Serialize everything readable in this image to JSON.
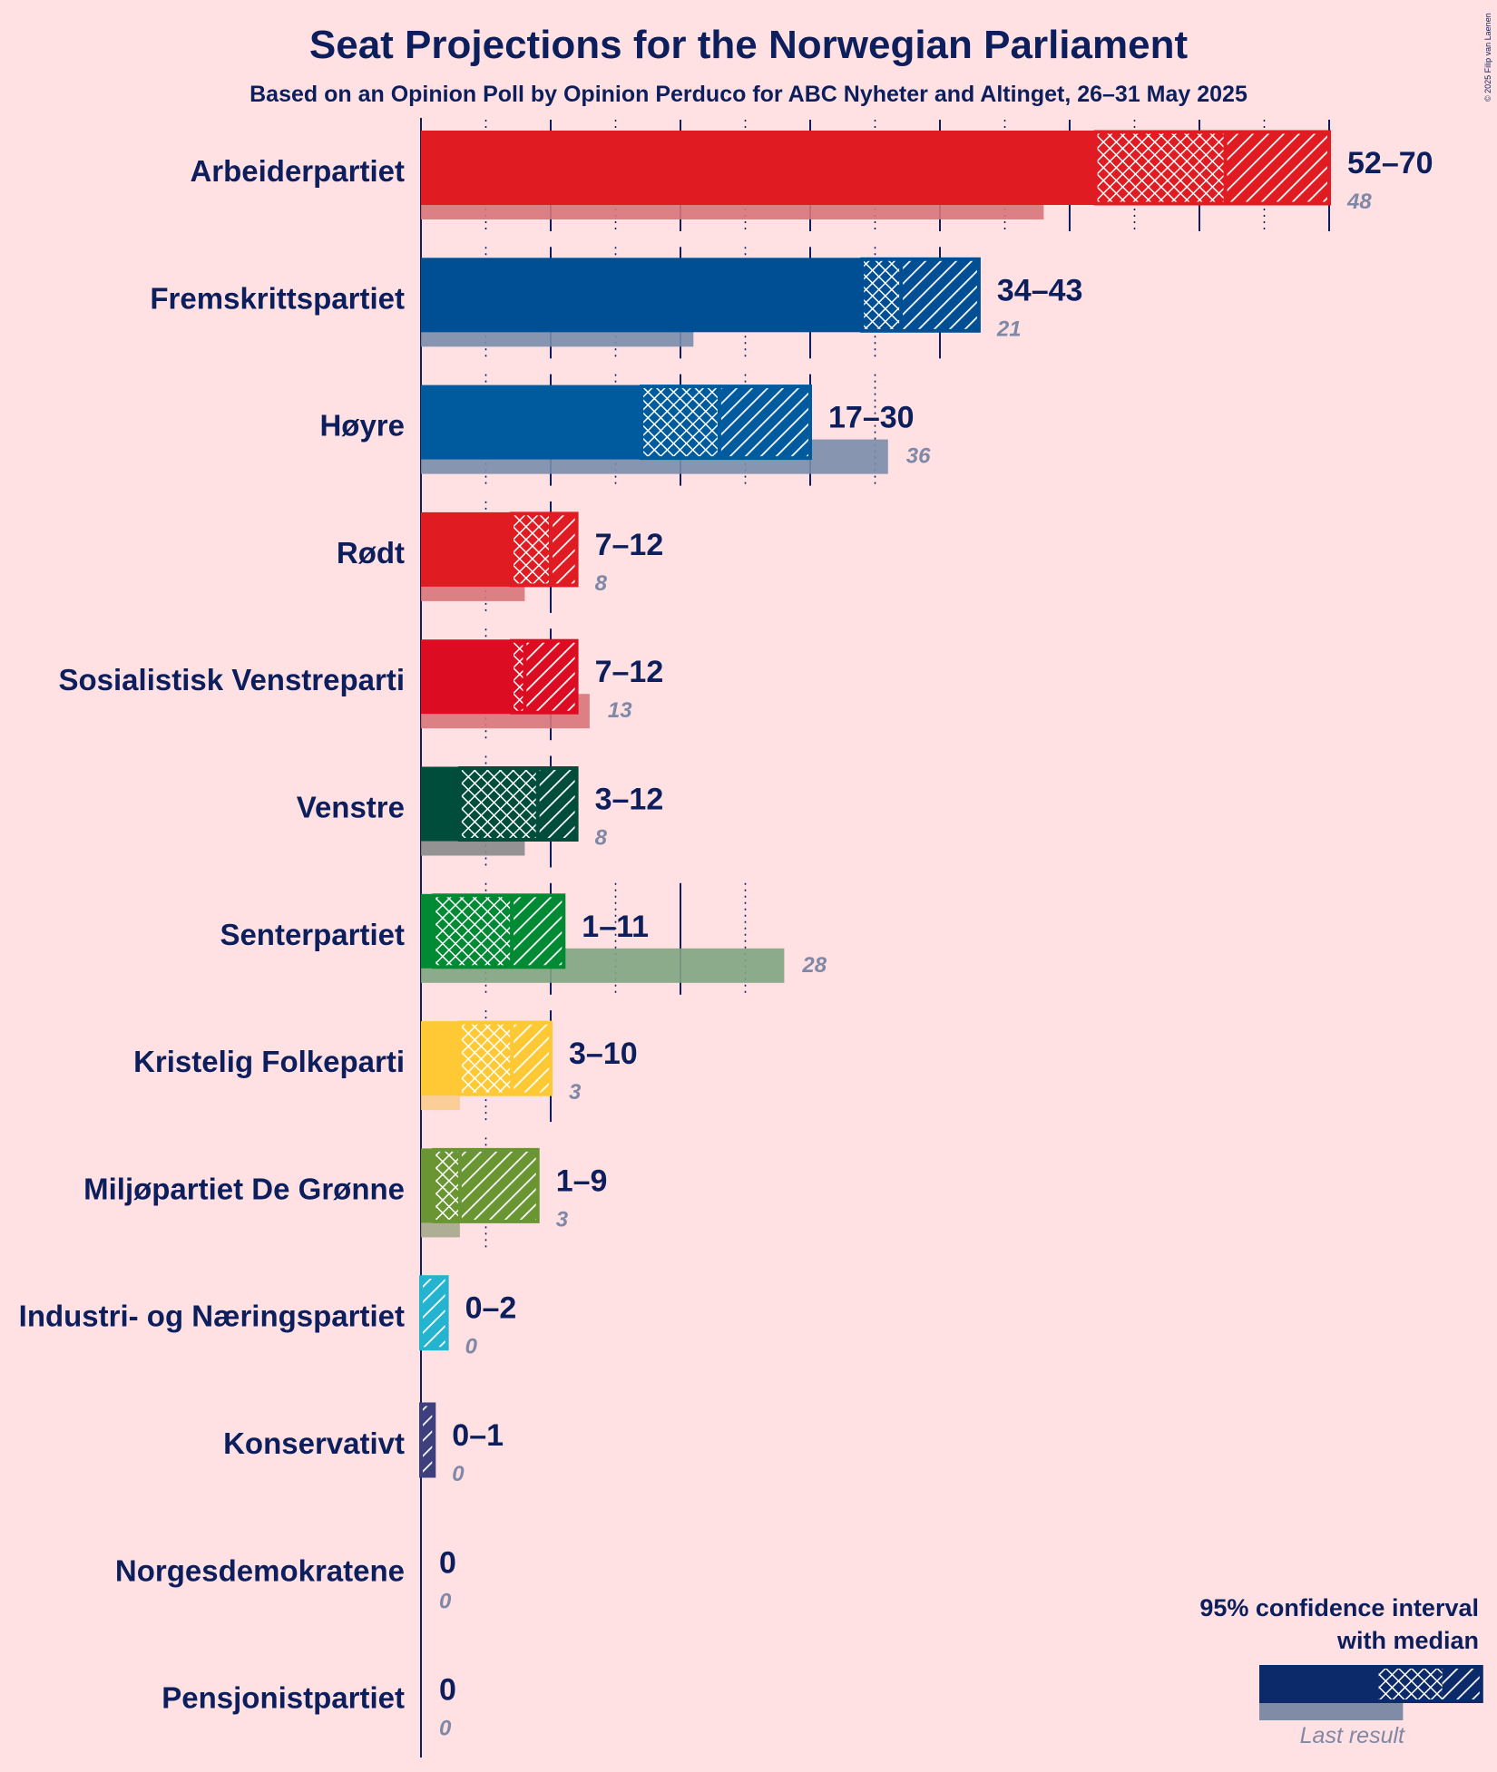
{
  "chart_data": {
    "type": "bar",
    "title": "Seat Projections for the Norwegian Parliament",
    "subtitle": "Based on an Opinion Poll by Opinion Perduco for ABC Nyheter and Altinget, 26–31 May 2025",
    "copyright": "© 2025 Filip van Laenen",
    "xlim": [
      0,
      70
    ],
    "gridlines": [
      5,
      10,
      15,
      20,
      25,
      30,
      35,
      40,
      45,
      50,
      55,
      60,
      65,
      70
    ],
    "series": [
      {
        "name": "Arbeiderpartiet",
        "low": 52,
        "median": 62,
        "high": 70,
        "ci_lo": 52,
        "range_label": "52–70",
        "last_result": 48,
        "last_label": "48",
        "color": "#E11B22",
        "last_color": "#D9757A"
      },
      {
        "name": "Fremskrittspartiet",
        "low": 34,
        "median": 37,
        "high": 43,
        "ci_lo": 34,
        "range_label": "34–43",
        "last_result": 21,
        "last_label": "21",
        "color": "#004F94",
        "last_color": "#7A8DAA"
      },
      {
        "name": "Høyre",
        "low": 17,
        "median": 23,
        "high": 30,
        "ci_lo": 17,
        "range_label": "17–30",
        "last_result": 36,
        "last_label": "36",
        "color": "#005B9E",
        "last_color": "#7A8DAA"
      },
      {
        "name": "Rødt",
        "low": 7,
        "median": 10,
        "high": 12,
        "ci_lo": 7,
        "range_label": "7–12",
        "last_result": 8,
        "last_label": "8",
        "color": "#E11B22",
        "last_color": "#D9757A"
      },
      {
        "name": "Sosialistisk Venstreparti",
        "low": 7,
        "median": 8,
        "high": 12,
        "ci_lo": 7,
        "range_label": "7–12",
        "last_result": 13,
        "last_label": "13",
        "color": "#DC0C22",
        "last_color": "#D9757A"
      },
      {
        "name": "Venstre",
        "low": 3,
        "median": 9,
        "high": 12,
        "ci_lo": 3,
        "range_label": "3–12",
        "last_result": 8,
        "last_label": "8",
        "color": "#004D3C",
        "last_color": "#8A8A8A"
      },
      {
        "name": "Senterpartiet",
        "low": 1,
        "median": 7,
        "high": 11,
        "ci_lo": 1,
        "range_label": "1–11",
        "last_result": 28,
        "last_label": "28",
        "color": "#008A33",
        "last_color": "#7EA57F"
      },
      {
        "name": "Kristelig Folkeparti",
        "low": 3,
        "median": 7,
        "high": 10,
        "ci_lo": 3,
        "range_label": "3–10",
        "last_result": 3,
        "last_label": "3",
        "color": "#FEC934",
        "last_color": "#FBCB8E"
      },
      {
        "name": "Miljøpartiet De Grønne",
        "low": 1,
        "median": 3,
        "high": 9,
        "ci_lo": 1,
        "range_label": "1–9",
        "last_result": 3,
        "last_label": "3",
        "color": "#6A9533",
        "last_color": "#A4A88B"
      },
      {
        "name": "Industri- og Næringspartiet",
        "low": 0,
        "median": 0,
        "high": 2,
        "ci_lo": 0,
        "range_label": "0–2",
        "last_result": 0,
        "last_label": "0",
        "color": "#24B4CF",
        "last_color": "#9AA9C0"
      },
      {
        "name": "Konservativt",
        "low": 0,
        "median": 0,
        "high": 1,
        "ci_lo": 0,
        "range_label": "0–1",
        "last_result": 0,
        "last_label": "0",
        "color": "#3E3F7D",
        "last_color": "#9AA9C0"
      },
      {
        "name": "Norgesdemokratene",
        "low": 0,
        "median": 0,
        "high": 0,
        "ci_lo": 0,
        "range_label": "0",
        "last_result": 0,
        "last_label": "0",
        "color": "#0C1F5C",
        "last_color": "#9AA9C0"
      },
      {
        "name": "Pensjonistpartiet",
        "low": 0,
        "median": 0,
        "high": 0,
        "ci_lo": 0,
        "range_label": "0",
        "last_result": 0,
        "last_label": "0",
        "color": "#0C1F5C",
        "last_color": "#9AA9C0"
      }
    ],
    "legend": {
      "line1": "95% confidence interval",
      "line2": "with median",
      "last": "Last result",
      "low": 9,
      "median": 14,
      "high": 17,
      "last_result": 11,
      "color": "#0C2A6A",
      "last_color": "#808BA5"
    }
  }
}
